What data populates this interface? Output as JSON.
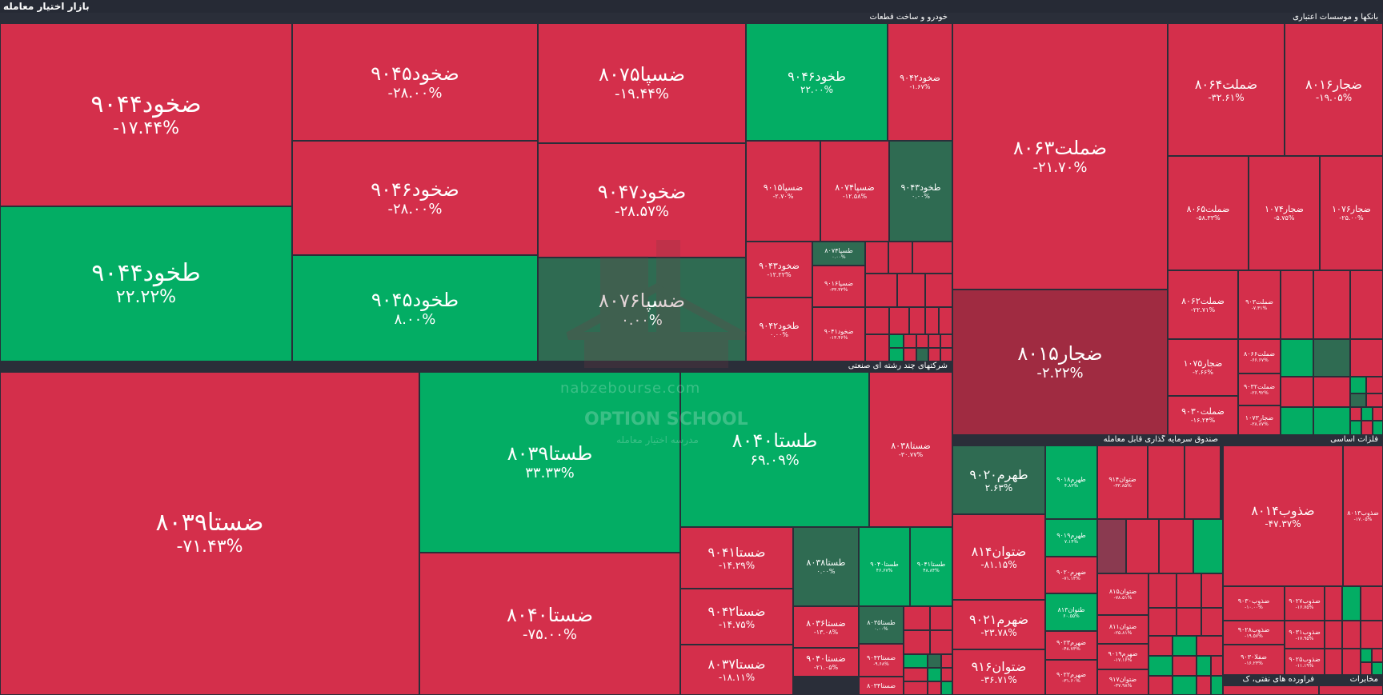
{
  "app": {
    "title": "بازار اختیار معامله"
  },
  "sectors": {
    "auto": "خودرو و ساخت قطعات",
    "banks": "بانکها و موسسات اعتباری",
    "multi": "شرکتهای چند رشته ای صنعتی",
    "etf": "صندوق سرمایه گذاری قابل معامله",
    "metals": "فلزات اساسی",
    "oil": "فراورده های نفتی، ک",
    "telecom": "مخابرات"
  },
  "tiles": [
    {
      "name": "ضخود۹۰۴۴",
      "pct": "-۱۷.۴۴%",
      "c": "red"
    },
    {
      "name": "طخود۹۰۴۴",
      "pct": "۲۲.۲۲%",
      "c": "green"
    },
    {
      "name": "ضخود۹۰۴۵",
      "pct": "-۲۸.۰۰%",
      "c": "red"
    },
    {
      "name": "ضخود۹۰۴۶",
      "pct": "-۲۸.۰۰%",
      "c": "red"
    },
    {
      "name": "طخود۹۰۴۵",
      "pct": "۸.۰۰%",
      "c": "green"
    },
    {
      "name": "ضسپا۸۰۷۵",
      "pct": "-۱۹.۴۴%",
      "c": "red"
    },
    {
      "name": "ضخود۹۰۴۷",
      "pct": "-۲۸.۵۷%",
      "c": "red"
    },
    {
      "name": "ضسپا۸۰۷۶",
      "pct": "۰.۰۰%",
      "c": "dgreen"
    },
    {
      "name": "طخود۹۰۴۶",
      "pct": "۲۲.۰۰%",
      "c": "green"
    },
    {
      "name": "ضخود۹۰۴۲",
      "pct": "-۱.۶۷%",
      "c": "red"
    },
    {
      "name": "ضسپا۹۰۱۵",
      "pct": "-۲.۷۰%",
      "c": "red"
    },
    {
      "name": "ضسپا۸۰۷۴",
      "pct": "-۱۲.۵۸%",
      "c": "red"
    },
    {
      "name": "طخود۹۰۴۳",
      "pct": "۰.۰۰%",
      "c": "dgreen"
    },
    {
      "name": "ضخود۹۰۴۳",
      "pct": "-۱۲.۲۲%",
      "c": "red"
    },
    {
      "name": "طسپا۸۰۷۴",
      "pct": "۰.۰۰%",
      "c": "dgreen"
    },
    {
      "name": "ضسپا۹۰۱۶",
      "pct": "-۳۳.۳۳%",
      "c": "red"
    },
    {
      "name": "طخود۹۰۴۲",
      "pct": "۰.۰۰%",
      "c": "red"
    },
    {
      "name": "ضخود۹۰۴۱",
      "pct": "-۱۳.۴۶%",
      "c": "red"
    },
    {
      "name": "ضستا۸۰۳۹",
      "pct": "-۷۱.۴۳%",
      "c": "red"
    },
    {
      "name": "طستا۸۰۳۹",
      "pct": "۳۳.۳۳%",
      "c": "green"
    },
    {
      "name": "ضستا۸۰۴۰",
      "pct": "-۷۵.۰۰%",
      "c": "red"
    },
    {
      "name": "طستا۸۰۴۰",
      "pct": "۶۹.۰۹%",
      "c": "green"
    },
    {
      "name": "ضستا۸۰۳۸",
      "pct": "-۳۰.۷۷%",
      "c": "red"
    },
    {
      "name": "ضستا۹۰۴۱",
      "pct": "-۱۴.۲۹%",
      "c": "red"
    },
    {
      "name": "ضستا۹۰۴۲",
      "pct": "-۱۴.۷۵%",
      "c": "red"
    },
    {
      "name": "ضستا۸۰۳۷",
      "pct": "-۱۸.۱۱%",
      "c": "red"
    },
    {
      "name": "طستا۸۰۳۸",
      "pct": "۰.۰۰%",
      "c": "dgreen"
    },
    {
      "name": "طستا۹۰۴۰",
      "pct": "۴۶.۶۷%",
      "c": "green"
    },
    {
      "name": "طستا۹۰۴۱",
      "pct": "۴۸.۸۴%",
      "c": "green"
    },
    {
      "name": "ضستا۸۰۳۶",
      "pct": "-۱۳.۰۸%",
      "c": "red"
    },
    {
      "name": "طستا۸۰۳۵",
      "pct": "۰.۰۰%",
      "c": "dgreen"
    },
    {
      "name": "ضستا۹۰۴۰",
      "pct": "-۲۱.۰۵%",
      "c": "red"
    },
    {
      "name": "ضستا۹۰۴۳",
      "pct": "-۹.۶۸%",
      "c": "red"
    },
    {
      "name": "ضستا۸۰۳۴",
      "pct": "",
      "c": "red"
    },
    {
      "name": "ضملت۸۰۶۳",
      "pct": "-۲۱.۷۰%",
      "c": "red"
    },
    {
      "name": "ضملت۸۰۶۴",
      "pct": "-۳۲.۶۱%",
      "c": "red"
    },
    {
      "name": "ضجار۸۰۱۶",
      "pct": "-۱۹.۰۵%",
      "c": "red"
    },
    {
      "name": "ضملت۸۰۶۵",
      "pct": "-۵۸.۳۳%",
      "c": "red"
    },
    {
      "name": "ضجار۱۰۷۴",
      "pct": "-۵.۷۵%",
      "c": "red"
    },
    {
      "name": "ضجار۱۰۷۶",
      "pct": "-۲۵.۰۰%",
      "c": "red"
    },
    {
      "name": "ضجار۸۰۱۵",
      "pct": "-۲.۲۲%",
      "c": "dred"
    },
    {
      "name": "ضملت۸۰۶۲",
      "pct": "-۲۲.۷۱%",
      "c": "red"
    },
    {
      "name": "ضملت۹۰۳",
      "pct": "-۷.۳۱%",
      "c": "red"
    },
    {
      "name": "ضجار۱۰۷۵",
      "pct": "-۲.۶۶%",
      "c": "red"
    },
    {
      "name": "ضملت۸۰۶۶",
      "pct": "-۶۶.۶۷%",
      "c": "red"
    },
    {
      "name": "ضملت۹۰۳۰",
      "pct": "-۱۶.۲۴%",
      "c": "red"
    },
    {
      "name": "ضملت۹۰۳۲",
      "pct": "-۲۶.۹۲%",
      "c": "red"
    },
    {
      "name": "ضجار۱۰۷۳",
      "pct": "-۲۸.۸۷%",
      "c": "red"
    },
    {
      "name": "طهرم۹۰۲۰",
      "pct": "۲.۶۳%",
      "c": "dgreen"
    },
    {
      "name": "طهرم۹۰۱۸",
      "pct": "۴.۸۳%",
      "c": "green"
    },
    {
      "name": "ضتوان۹۱۴",
      "pct": "-۳۳.۸۵%",
      "c": "red"
    },
    {
      "name": "طهرم۹۰۱۹",
      "pct": "۷.۱۴%",
      "c": "green"
    },
    {
      "name": "ضتوان۸۱۴",
      "pct": "-۸۱.۱۵%",
      "c": "red"
    },
    {
      "name": "ضهرم۹۰۲۰",
      "pct": "-۷۱.۱۴%",
      "c": "red"
    },
    {
      "name": "طتوان۸۱۳",
      "pct": "۶۰.۵۵%",
      "c": "green"
    },
    {
      "name": "ضتوان۸۱۵",
      "pct": "-۷۸.۵۱%",
      "c": "red"
    },
    {
      "name": "ضهرم۹۰۲۱",
      "pct": "-۲۳.۷۸%",
      "c": "red"
    },
    {
      "name": "ضهرم۹۰۲۳",
      "pct": "-۴۸.۷۳%",
      "c": "red"
    },
    {
      "name": "ضتوان۸۱۱",
      "pct": "-۲۵.۸۱%",
      "c": "red"
    },
    {
      "name": "ضتوان۹۱۶",
      "pct": "-۳۶.۷۱%",
      "c": "red"
    },
    {
      "name": "ضهرم۹۰۲۲",
      "pct": "-۳۱.۶۰%",
      "c": "red"
    },
    {
      "name": "ضهرم۹۰۱۹",
      "pct": "-۱۷.۱۶%",
      "c": "red"
    },
    {
      "name": "ضتوان۹۱۷",
      "pct": "-۳۷.۹۸%",
      "c": "red"
    },
    {
      "name": "ضذوب۸۰۱۴",
      "pct": "-۴۷.۳۷%",
      "c": "red"
    },
    {
      "name": "ضذوب۸۰۱۳",
      "pct": "-۱۷.۰۵%",
      "c": "red"
    },
    {
      "name": "ضذوب۹۰۳۰",
      "pct": "-۱۰.۰۰%",
      "c": "red"
    },
    {
      "name": "ضذوب۹۰۲۷",
      "pct": "-۱۶.۷۵%",
      "c": "red"
    },
    {
      "name": "ضذوب۹۰۲۸",
      "pct": "-۱۹.۵۷%",
      "c": "red"
    },
    {
      "name": "ضذوب۹۰۳۱",
      "pct": "-۱۷.۹۵%",
      "c": "red"
    },
    {
      "name": "ضفلا۹۰۳۰",
      "pct": "-۱۶.۲۳%",
      "c": "red"
    },
    {
      "name": "ضذوب۹۰۲۵",
      "pct": "-۱۱.۱۹%",
      "c": "red"
    }
  ],
  "watermark": {
    "line1": "nabzebourse.com",
    "line2": "OPTION SCHOOL",
    "line3": "مدرسه اختیار معامله"
  }
}
